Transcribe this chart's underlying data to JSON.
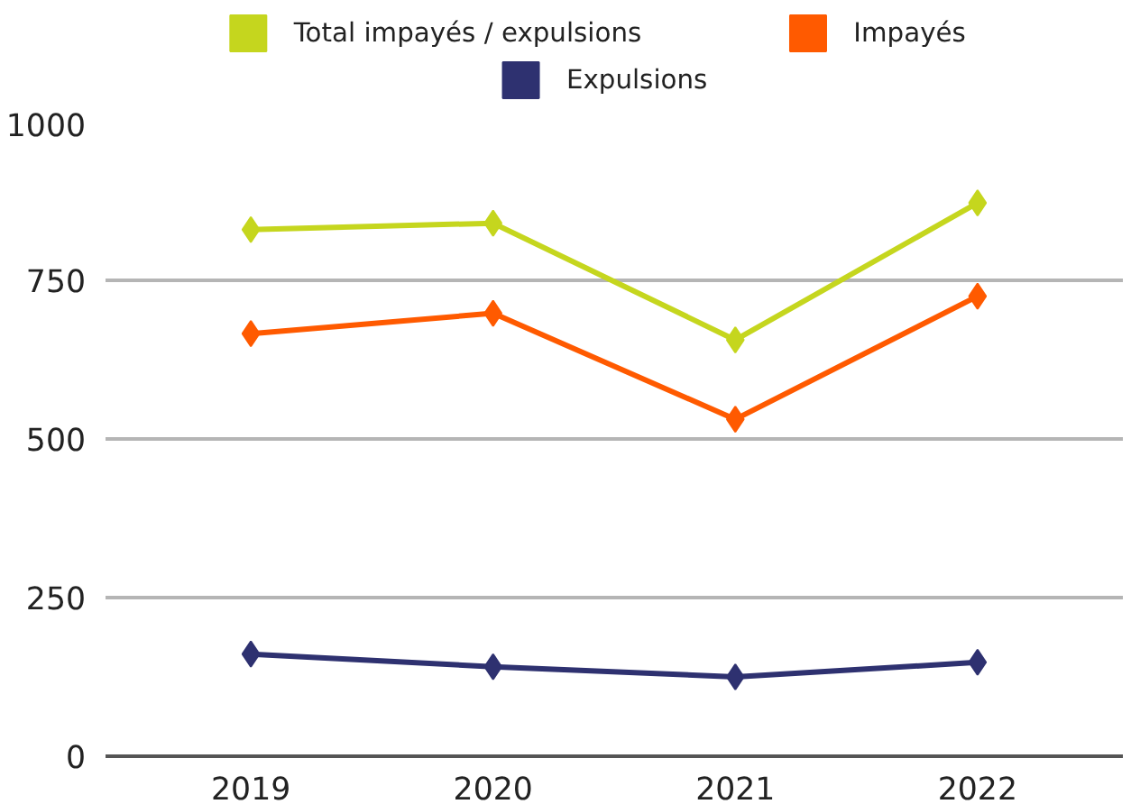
{
  "chart_data": {
    "type": "line",
    "categories": [
      "2019",
      "2020",
      "2021",
      "2022"
    ],
    "series": [
      {
        "name": "Total impayés / expulsions",
        "color": "#c5d61e",
        "values": [
          830,
          840,
          656,
          872
        ]
      },
      {
        "name": "Impayés",
        "color": "#ff5a00",
        "values": [
          666,
          698,
          531,
          725
        ]
      },
      {
        "name": "Expulsions",
        "color": "#2e3170",
        "values": [
          161,
          141,
          125,
          148
        ]
      }
    ],
    "ylim": [
      0,
      1000
    ],
    "yticks": [
      0,
      250,
      500,
      750,
      1000
    ],
    "grid": "y",
    "legend": "top",
    "marker": "diamond",
    "line_style": "solid"
  }
}
